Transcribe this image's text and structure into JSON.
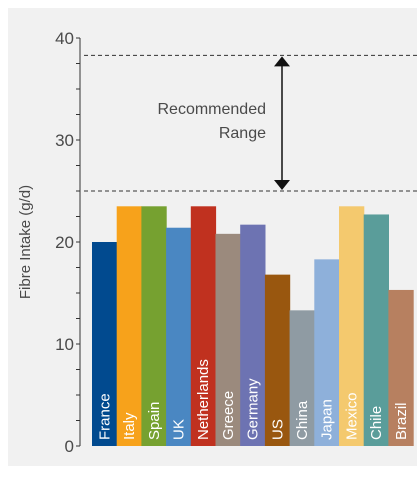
{
  "chart_data": {
    "type": "bar",
    "ylabel": "Fibre Intake (g/d)",
    "ylim": [
      0,
      40
    ],
    "yticks": [
      0,
      10,
      20,
      30,
      40
    ],
    "grid": false,
    "categories": [
      "France",
      "Italy",
      "Spain",
      "UK",
      "Netherlands",
      "Greece",
      "Germany",
      "US",
      "China",
      "Japan",
      "Mexico",
      "Chile",
      "Brazil"
    ],
    "values": [
      20.0,
      23.5,
      23.5,
      21.4,
      23.5,
      20.8,
      21.7,
      16.8,
      13.3,
      18.3,
      23.5,
      22.7,
      15.3
    ],
    "colors": [
      "#014a8f",
      "#f7a21b",
      "#76a130",
      "#4a87c2",
      "#c0311f",
      "#9b8a7d",
      "#6d73b2",
      "#99570f",
      "#8f9ba3",
      "#8eb0da",
      "#f4c96e",
      "#5a9d9a",
      "#b78060"
    ],
    "label_colors": [
      "#ffffff",
      "#ffffff",
      "#ffffff",
      "#ffffff",
      "#ffffff",
      "#ffffff",
      "#ffffff",
      "#ffffff",
      "#ffffff",
      "#ffffff",
      "#222222",
      "#ffffff",
      "#ffffff"
    ],
    "reference_lines": [
      38.3,
      25.0
    ],
    "annotation": {
      "lines": [
        "Recommended",
        "Range"
      ],
      "low": 25.0,
      "high": 38.3
    }
  }
}
